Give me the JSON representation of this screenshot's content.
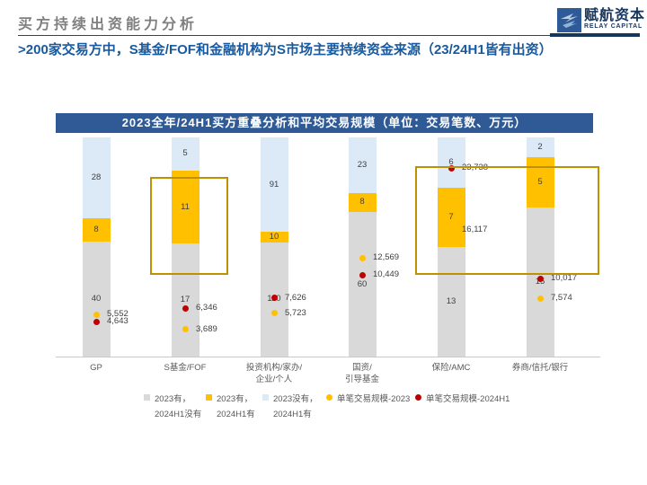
{
  "page": {
    "header_title": "买方持续出资能力分析",
    "headline": ">200家交易方中，S基金/FOF和金融机构为S市场主要持续资金来源（23/24H1皆有出资）",
    "logo": {
      "name_cn": "赋航资本",
      "name_en": "RELAY CAPITAL"
    }
  },
  "chart_data": {
    "type": "bar",
    "variant": "stacked-100-percent",
    "title": "2023全年/24H1买方重叠分析和平均交易规模（单位：交易笔数、万元）",
    "unit": "交易笔数、万元",
    "categories": [
      "GP",
      "S基金/FOF",
      "投资机构/家办/企业/个人",
      "国资/引导基金",
      "保险/AMC",
      "券商/信托/银行"
    ],
    "category_label_lines": [
      [
        "GP"
      ],
      [
        "S基金/FOF"
      ],
      [
        "投资机构/家办/",
        "企业/个人"
      ],
      [
        "国资/",
        "引导基金"
      ],
      [
        "保险/AMC"
      ],
      [
        "券商/信托/银行"
      ]
    ],
    "series": [
      {
        "name": "2023有，2024H1没有",
        "color": "#d9d9d9",
        "values": [
          40,
          17,
          110,
          60,
          13,
          15
        ]
      },
      {
        "name": "2023有，2024H1有",
        "color": "#ffc000",
        "values": [
          8,
          11,
          10,
          8,
          7,
          5
        ]
      },
      {
        "name": "2023没有，2024H1有",
        "color": "#dce9f7",
        "values": [
          28,
          5,
          91,
          23,
          6,
          2
        ]
      }
    ],
    "markers": [
      {
        "name": "单笔交易规模-2023",
        "color": "#ffc000",
        "values": [
          5552,
          3689,
          5723,
          12569,
          16117,
          7574
        ]
      },
      {
        "name": "单笔交易规模-2024H1",
        "color": "#c00000",
        "values": [
          4643,
          6346,
          7626,
          10449,
          23738,
          10017
        ]
      }
    ],
    "legend": [
      {
        "type": "square",
        "color": "#d9d9d9",
        "lines": [
          "2023有，",
          "2024H1没有"
        ]
      },
      {
        "type": "square",
        "color": "#ffc000",
        "lines": [
          "2023有，",
          "2024H1有"
        ]
      },
      {
        "type": "square",
        "color": "#dce9f7",
        "lines": [
          "2023没有，",
          "2024H1有"
        ]
      },
      {
        "type": "dot",
        "color": "#ffc000",
        "lines": [
          "单笔交易规模-2023"
        ]
      },
      {
        "type": "dot",
        "color": "#c00000",
        "lines": [
          "单笔交易规模-2024H1"
        ]
      }
    ],
    "highlights": [
      "S基金/FOF",
      "保险/AMC + 券商/信托/银行"
    ],
    "legend_position": "bottom",
    "grid": false,
    "colors": {
      "accent_blue": "#2f5a96",
      "headline_blue": "#185aa0",
      "highlight_gold": "#bf9000"
    }
  }
}
